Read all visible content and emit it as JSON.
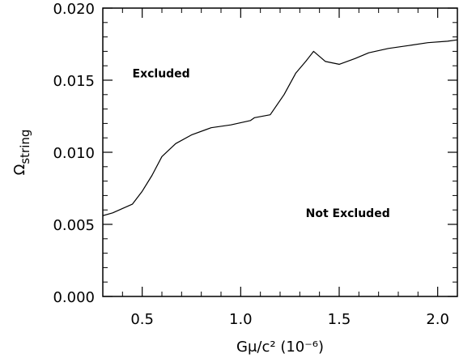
{
  "chart_data": {
    "type": "line",
    "title": "",
    "xlabel": "Gμ/c² (10⁻⁶)",
    "ylabel": "Ωstring",
    "ylabel_main": "Ω",
    "ylabel_sub": "string",
    "xlim": [
      0.3,
      2.1
    ],
    "ylim": [
      0.0,
      0.02
    ],
    "x_ticks": [
      0.5,
      1.0,
      1.5,
      2.0
    ],
    "x_tick_labels": [
      "0.5",
      "1.0",
      "1.5",
      "2.0"
    ],
    "y_ticks": [
      0.0,
      0.005,
      0.01,
      0.015,
      0.02
    ],
    "y_tick_labels": [
      "0.000",
      "0.005",
      "0.010",
      "0.015",
      "0.020"
    ],
    "grid": false,
    "series": [
      {
        "color": "#000000",
        "x": [
          0.3,
          0.35,
          0.4,
          0.45,
          0.5,
          0.55,
          0.6,
          0.67,
          0.75,
          0.85,
          0.95,
          1.05,
          1.07,
          1.15,
          1.22,
          1.28,
          1.33,
          1.37,
          1.43,
          1.5,
          1.58,
          1.65,
          1.75,
          1.85,
          1.95,
          2.05,
          2.1
        ],
        "y": [
          0.0056,
          0.0058,
          0.0061,
          0.0064,
          0.0073,
          0.0084,
          0.0097,
          0.0106,
          0.0112,
          0.0117,
          0.0119,
          0.0122,
          0.0124,
          0.0126,
          0.014,
          0.0155,
          0.0163,
          0.017,
          0.0163,
          0.0161,
          0.0165,
          0.0169,
          0.0172,
          0.0174,
          0.0176,
          0.0177,
          0.0178
        ]
      }
    ],
    "annotations": [
      {
        "text": "Excluded",
        "x": 0.45,
        "y": 0.0152
      },
      {
        "text": "Not Excluded",
        "x": 1.33,
        "y": 0.0055
      }
    ]
  }
}
